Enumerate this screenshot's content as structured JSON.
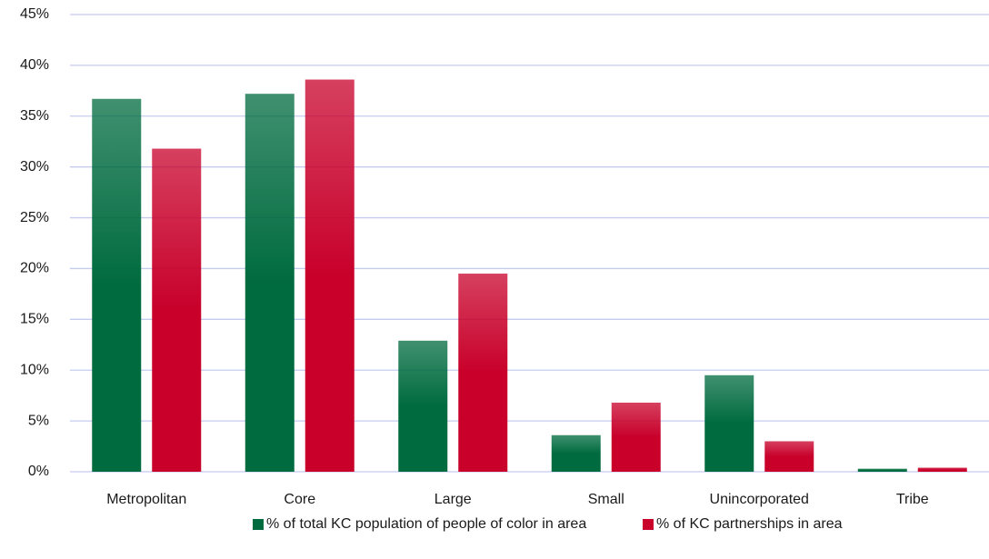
{
  "chart_data": {
    "type": "bar",
    "categories": [
      "Metropolitan",
      "Core",
      "Large",
      "Small",
      "Unincorporated",
      "Tribe"
    ],
    "series": [
      {
        "name": "% of total KC population of people of color in area",
        "color": "#006b3f",
        "values": [
          36.7,
          37.2,
          12.9,
          3.6,
          9.5,
          0.3
        ]
      },
      {
        "name": "% of KC partnerships in area",
        "color": "#c8002a",
        "values": [
          31.8,
          38.6,
          19.5,
          6.8,
          3.0,
          0.4
        ]
      }
    ],
    "ylim": [
      0,
      45
    ],
    "yticks": [
      {
        "value": 0,
        "label": "0%"
      },
      {
        "value": 5,
        "label": "5%"
      },
      {
        "value": 10,
        "label": "10%"
      },
      {
        "value": 15,
        "label": "15%"
      },
      {
        "value": 20,
        "label": "20%"
      },
      {
        "value": 25,
        "label": "25%"
      },
      {
        "value": 30,
        "label": "30%"
      },
      {
        "value": 35,
        "label": "35%"
      },
      {
        "value": 40,
        "label": "40%"
      },
      {
        "value": 45,
        "label": "45%"
      }
    ],
    "grid": true,
    "legend": "bottom"
  }
}
